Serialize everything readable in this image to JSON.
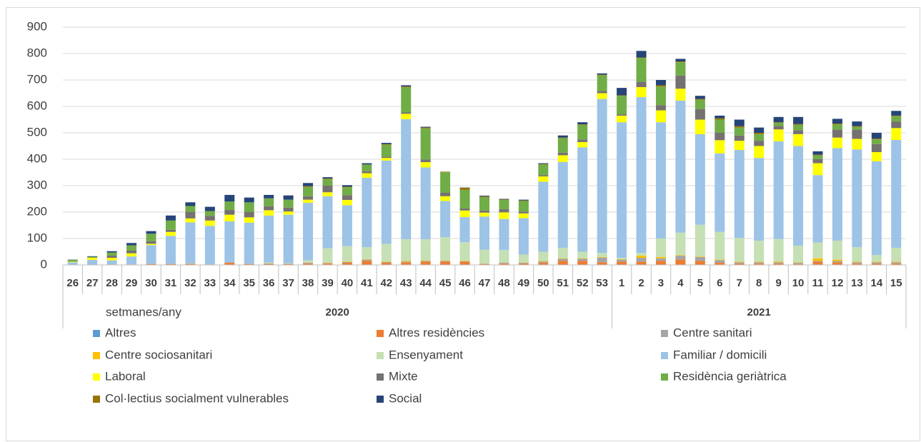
{
  "chart_data": {
    "type": "stacked_bar",
    "x_label": "setmanes/any",
    "category_groups": [
      {
        "name": "2020",
        "categories": [
          "26",
          "27",
          "28",
          "29",
          "30",
          "31",
          "32",
          "33",
          "34",
          "35",
          "36",
          "37",
          "38",
          "39",
          "40",
          "41",
          "42",
          "43",
          "44",
          "45",
          "46",
          "47",
          "48",
          "49",
          "50",
          "51",
          "52",
          "53"
        ]
      },
      {
        "name": "2021",
        "categories": [
          "1",
          "2",
          "3",
          "4",
          "5",
          "6",
          "7",
          "8",
          "9",
          "10",
          "11",
          "12",
          "13",
          "14",
          "15"
        ]
      }
    ],
    "ylim": [
      0,
      900
    ],
    "yticks": [
      0,
      100,
      200,
      300,
      400,
      500,
      600,
      700,
      800,
      900
    ],
    "grid": true,
    "series": [
      {
        "name": "Altres",
        "color": "#5b9bd5",
        "values": [
          0,
          0,
          0,
          0,
          0,
          0,
          0,
          0,
          0,
          0,
          0,
          0,
          0,
          0,
          0,
          0,
          0,
          0,
          0,
          0,
          0,
          0,
          0,
          0,
          0,
          0,
          0,
          0,
          0,
          0,
          0,
          0,
          0,
          0,
          0,
          0,
          0,
          0,
          0,
          0,
          0,
          0,
          0
        ]
      },
      {
        "name": "Altres residències",
        "color": "#ed7d31",
        "values": [
          1,
          1,
          2,
          2,
          3,
          3,
          3,
          2,
          8,
          3,
          3,
          3,
          5,
          5,
          8,
          15,
          8,
          10,
          12,
          12,
          12,
          3,
          5,
          5,
          8,
          15,
          15,
          10,
          12,
          12,
          15,
          20,
          15,
          8,
          5,
          5,
          5,
          3,
          12,
          10,
          5,
          5,
          5
        ]
      },
      {
        "name": "Centre sanitari",
        "color": "#a5a5a5",
        "values": [
          0,
          0,
          0,
          0,
          2,
          2,
          2,
          1,
          2,
          2,
          3,
          2,
          3,
          2,
          3,
          5,
          3,
          3,
          3,
          3,
          2,
          2,
          3,
          3,
          5,
          8,
          8,
          18,
          8,
          15,
          10,
          15,
          15,
          10,
          5,
          5,
          5,
          5,
          3,
          5,
          5,
          5,
          5
        ]
      },
      {
        "name": "Centre sociosanitari",
        "color": "#ffc000",
        "values": [
          0,
          0,
          0,
          0,
          0,
          0,
          1,
          0,
          0,
          0,
          1,
          0,
          1,
          1,
          2,
          2,
          2,
          2,
          2,
          2,
          2,
          1,
          0,
          1,
          2,
          2,
          2,
          2,
          2,
          8,
          5,
          2,
          2,
          2,
          2,
          2,
          3,
          2,
          10,
          5,
          2,
          2,
          2
        ]
      },
      {
        "name": "Ensenyament",
        "color": "#c5e0b4",
        "values": [
          0,
          0,
          0,
          0,
          0,
          0,
          0,
          0,
          0,
          0,
          2,
          2,
          8,
          55,
          58,
          45,
          67,
          82,
          80,
          88,
          70,
          52,
          48,
          30,
          35,
          40,
          25,
          15,
          5,
          10,
          70,
          85,
          120,
          105,
          90,
          80,
          85,
          63,
          60,
          72,
          55,
          25,
          53
        ]
      },
      {
        "name": "Familiar / domicili",
        "color": "#9dc3e6",
        "values": [
          9,
          18,
          15,
          30,
          70,
          105,
          155,
          145,
          155,
          155,
          178,
          183,
          218,
          197,
          155,
          263,
          315,
          455,
          272,
          137,
          95,
          125,
          118,
          138,
          265,
          325,
          395,
          583,
          513,
          590,
          440,
          500,
          343,
          297,
          333,
          313,
          370,
          377,
          255,
          350,
          370,
          355,
          408
        ]
      },
      {
        "name": "Laboral",
        "color": "#ffff00",
        "values": [
          2,
          8,
          10,
          12,
          5,
          15,
          15,
          20,
          25,
          20,
          20,
          12,
          12,
          15,
          20,
          17,
          10,
          20,
          20,
          18,
          25,
          15,
          25,
          18,
          20,
          25,
          20,
          22,
          25,
          38,
          45,
          45,
          55,
          50,
          35,
          45,
          45,
          45,
          45,
          40,
          40,
          35,
          45
        ]
      },
      {
        "name": "Mixte",
        "color": "#767171",
        "values": [
          1,
          1,
          8,
          10,
          10,
          8,
          25,
          18,
          18,
          20,
          15,
          15,
          13,
          25,
          18,
          8,
          5,
          5,
          10,
          13,
          8,
          8,
          12,
          7,
          5,
          10,
          10,
          8,
          5,
          20,
          20,
          50,
          40,
          28,
          20,
          20,
          13,
          15,
          15,
          30,
          35,
          30,
          25
        ]
      },
      {
        "name": "Residència geriàtrica",
        "color": "#70ad47",
        "values": [
          6,
          3,
          12,
          20,
          28,
          35,
          22,
          18,
          32,
          37,
          30,
          30,
          35,
          25,
          30,
          25,
          45,
          95,
          118,
          78,
          70,
          50,
          35,
          40,
          40,
          55,
          55,
          60,
          70,
          90,
          70,
          50,
          35,
          50,
          30,
          25,
          12,
          20,
          15,
          20,
          10,
          18,
          20
        ]
      },
      {
        "name": "Col·lectius socialment vulnerables",
        "color": "#997300",
        "values": [
          0,
          0,
          0,
          0,
          0,
          0,
          0,
          0,
          0,
          0,
          0,
          0,
          3,
          2,
          2,
          0,
          2,
          3,
          3,
          2,
          8,
          3,
          2,
          2,
          2,
          2,
          2,
          2,
          2,
          2,
          5,
          3,
          3,
          5,
          5,
          5,
          2,
          3,
          2,
          3,
          3,
          3,
          2
        ]
      },
      {
        "name": "Social",
        "color": "#264478",
        "values": [
          1,
          2,
          5,
          9,
          10,
          19,
          14,
          16,
          25,
          18,
          13,
          16,
          12,
          5,
          6,
          5,
          5,
          5,
          3,
          0,
          1,
          3,
          2,
          3,
          3,
          8,
          8,
          5,
          28,
          25,
          20,
          10,
          12,
          10,
          25,
          20,
          20,
          27,
          13,
          18,
          18,
          22,
          18
        ]
      }
    ]
  }
}
